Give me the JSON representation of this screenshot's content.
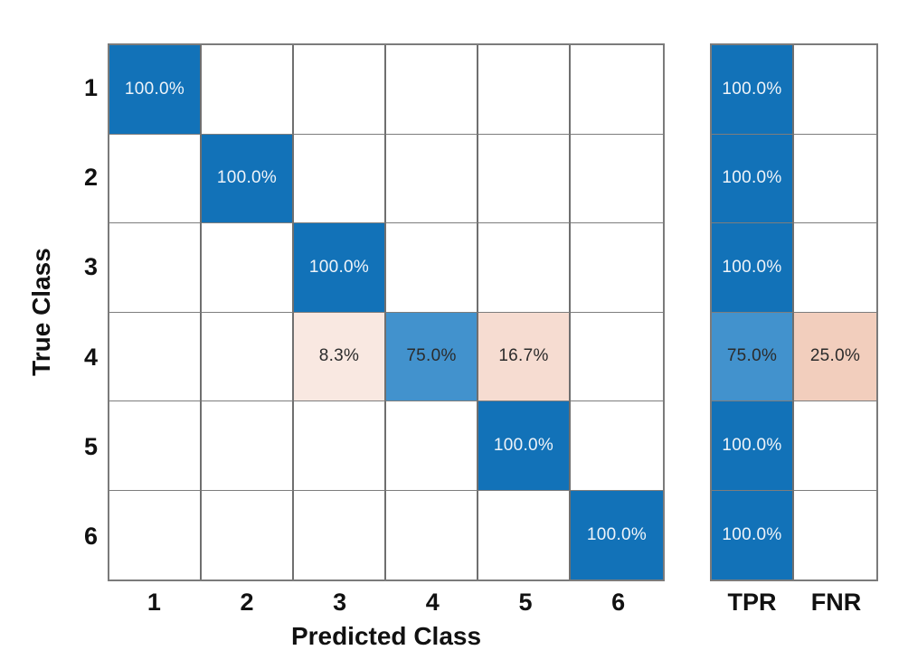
{
  "figure": {
    "background": "#ffffff"
  },
  "chart_data": {
    "type": "heatmap",
    "subtype": "confusion-matrix-row-normalized",
    "title": "",
    "xlabel": "Predicted Class",
    "ylabel": "True Class",
    "x_tick_labels": [
      "1",
      "2",
      "3",
      "4",
      "5",
      "6"
    ],
    "y_tick_labels": [
      "1",
      "2",
      "3",
      "4",
      "5",
      "6"
    ],
    "grid": true,
    "legend_position": "none",
    "matrix_percent": [
      [
        100.0,
        0,
        0,
        0,
        0,
        0
      ],
      [
        0,
        100.0,
        0,
        0,
        0,
        0
      ],
      [
        0,
        0,
        100.0,
        0,
        0,
        0
      ],
      [
        0,
        0,
        8.3,
        75.0,
        16.7,
        0
      ],
      [
        0,
        0,
        0,
        0,
        100.0,
        0
      ],
      [
        0,
        0,
        0,
        0,
        0,
        100.0
      ]
    ],
    "cell_labels": [
      [
        "100.0%",
        "",
        "",
        "",
        "",
        ""
      ],
      [
        "",
        "100.0%",
        "",
        "",
        "",
        ""
      ],
      [
        "",
        "",
        "100.0%",
        "",
        "",
        ""
      ],
      [
        "",
        "",
        "8.3%",
        "75.0%",
        "16.7%",
        ""
      ],
      [
        "",
        "",
        "",
        "",
        "100.0%",
        ""
      ],
      [
        "",
        "",
        "",
        "",
        "",
        "100.0%"
      ]
    ],
    "cell_fill_keys": [
      [
        "diag_blue",
        "",
        "",
        "",
        "",
        ""
      ],
      [
        "",
        "diag_blue",
        "",
        "",
        "",
        ""
      ],
      [
        "",
        "",
        "diag_blue",
        "",
        "",
        ""
      ],
      [
        "",
        "",
        "pink_light",
        "mid_blue",
        "pink_mid",
        ""
      ],
      [
        "",
        "",
        "",
        "",
        "diag_blue",
        ""
      ],
      [
        "",
        "",
        "",
        "",
        "",
        "diag_blue"
      ]
    ],
    "summary": {
      "columns": [
        "TPR",
        "FNR"
      ],
      "tpr_percent": [
        100.0,
        100.0,
        100.0,
        75.0,
        100.0,
        100.0
      ],
      "fnr_percent": [
        0,
        0,
        0,
        25.0,
        0,
        0
      ],
      "tpr_labels": [
        "100.0%",
        "100.0%",
        "100.0%",
        "75.0%",
        "100.0%",
        "100.0%"
      ],
      "fnr_labels": [
        "",
        "",
        "",
        "25.0%",
        "",
        ""
      ],
      "tpr_fill_keys": [
        "diag_blue",
        "diag_blue",
        "diag_blue",
        "mid_blue",
        "diag_blue",
        "diag_blue"
      ],
      "fnr_fill_keys": [
        "",
        "",
        "",
        "pink_strong",
        "",
        ""
      ]
    }
  },
  "colors": {
    "diag_blue": "#1272b8",
    "mid_blue": "#4292cd",
    "pink_light": "#f9e8e1",
    "pink_mid": "#f6dcd1",
    "pink_strong": "#f2cebd",
    "empty_cell": "#ffffff",
    "text_on_dark": "#eff4f9",
    "text_on_light": "#2b2b2b",
    "grid_line": "#6f6f6f",
    "outer_border": "#7b7b7b",
    "axis_text": "#111111"
  }
}
